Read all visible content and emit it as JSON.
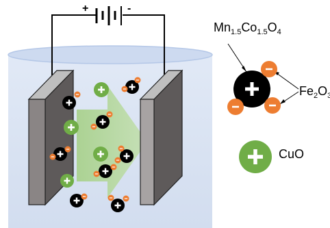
{
  "battery": {
    "positive": "+",
    "negative": "-"
  },
  "labels": {
    "mn_base": "Mn",
    "mn_s1": "1.5",
    "co_base": "Co",
    "co_s2": "1.5",
    "o_base": "O",
    "o_s3": "4",
    "fe_base": "Fe",
    "fe_s1": "2",
    "fe_o": "O",
    "fe_s2": "3",
    "cuo": "CuO"
  },
  "colors": {
    "particle_black": "#000000",
    "particle_green": "#70ad47",
    "particle_orange": "#ed7d31",
    "electrolyte": "#dae3f3",
    "electrode_face": "#8a8585",
    "field_arrow": "#a9d18e"
  }
}
